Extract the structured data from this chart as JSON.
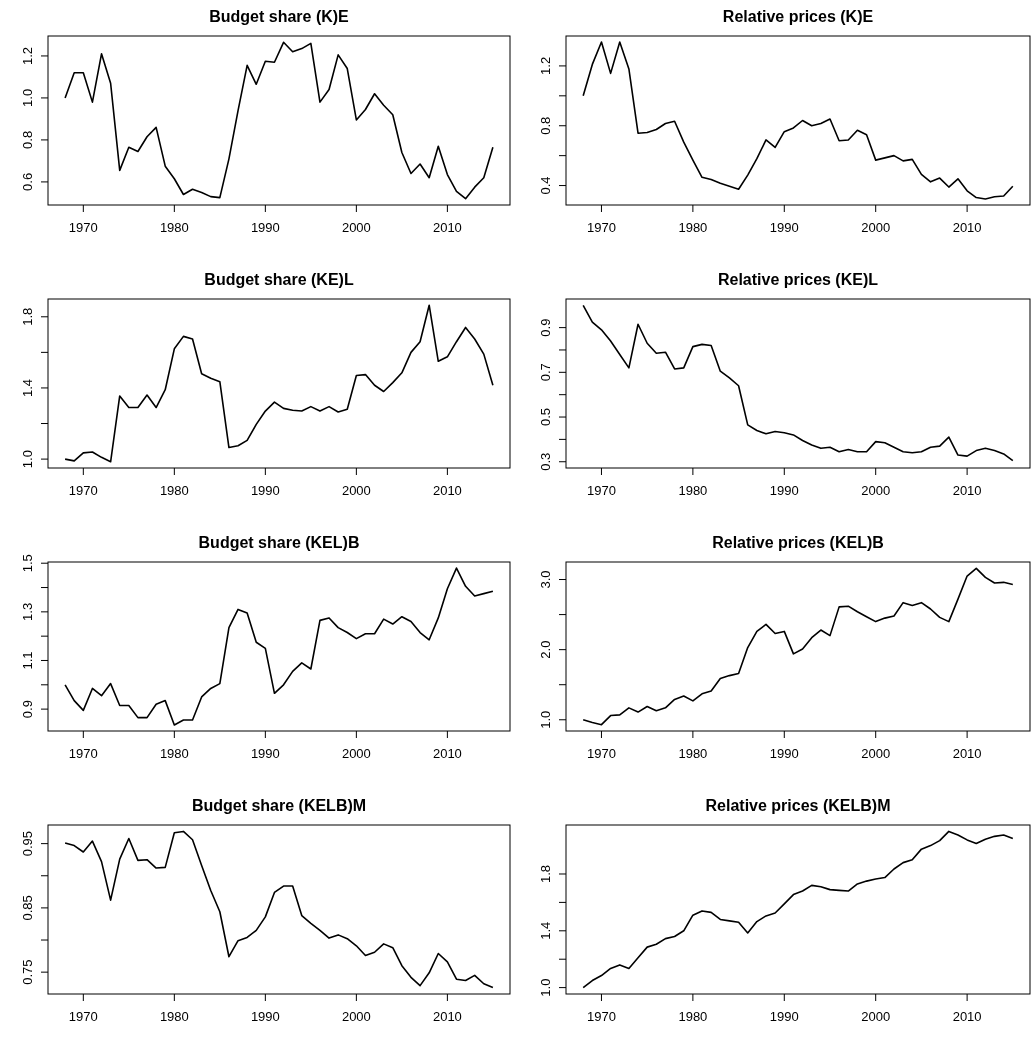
{
  "chart_data": [
    {
      "type": "line",
      "title": "Budget share (K)E",
      "color": "#000000",
      "x": [
        1968,
        1969,
        1970,
        1971,
        1972,
        1973,
        1974,
        1975,
        1976,
        1977,
        1978,
        1979,
        1980,
        1981,
        1982,
        1983,
        1984,
        1985,
        1986,
        1987,
        1988,
        1989,
        1990,
        1991,
        1992,
        1993,
        1994,
        1995,
        1996,
        1997,
        1998,
        1999,
        2000,
        2001,
        2002,
        2003,
        2004,
        2005,
        2006,
        2007,
        2008,
        2009,
        2010,
        2011,
        2012,
        2013,
        2014,
        2015
      ],
      "values": [
        1.0,
        1.12,
        1.12,
        0.98,
        1.21,
        1.07,
        0.655,
        0.765,
        0.745,
        0.815,
        0.86,
        0.675,
        0.615,
        0.54,
        0.565,
        0.55,
        0.53,
        0.525,
        0.71,
        0.94,
        1.155,
        1.065,
        1.175,
        1.17,
        1.265,
        1.22,
        1.235,
        1.26,
        0.98,
        1.04,
        1.205,
        1.14,
        0.895,
        0.945,
        1.02,
        0.965,
        0.92,
        0.74,
        0.64,
        0.685,
        0.62,
        0.77,
        0.635,
        0.555,
        0.52,
        0.575,
        0.62,
        0.765
      ],
      "xlim": [
        1966.12,
        2016.88
      ],
      "xticks": [
        1970,
        1980,
        1990,
        2000,
        2010
      ],
      "ylim": [
        0.49,
        1.295
      ],
      "yticks": [
        0.6,
        0.8,
        {
          "value": 1,
          "label": "1.0"
        },
        1.2
      ]
    },
    {
      "type": "line",
      "title": "Relative prices (K)E",
      "color": "#000000",
      "x": [
        1968,
        1969,
        1970,
        1971,
        1972,
        1973,
        1974,
        1975,
        1976,
        1977,
        1978,
        1979,
        1980,
        1981,
        1982,
        1983,
        1984,
        1985,
        1986,
        1987,
        1988,
        1989,
        1990,
        1991,
        1992,
        1993,
        1994,
        1995,
        1996,
        1997,
        1998,
        1999,
        2000,
        2001,
        2002,
        2003,
        2004,
        2005,
        2006,
        2007,
        2008,
        2009,
        2010,
        2011,
        2012,
        2013,
        2014,
        2015
      ],
      "values": [
        1.0,
        1.21,
        1.36,
        1.15,
        1.36,
        1.18,
        0.75,
        0.755,
        0.775,
        0.815,
        0.83,
        0.69,
        0.57,
        0.455,
        0.44,
        0.415,
        0.395,
        0.375,
        0.47,
        0.58,
        0.705,
        0.655,
        0.76,
        0.785,
        0.835,
        0.8,
        0.815,
        0.845,
        0.7,
        0.705,
        0.77,
        0.74,
        0.57,
        0.585,
        0.6,
        0.565,
        0.575,
        0.475,
        0.425,
        0.45,
        0.39,
        0.445,
        0.365,
        0.32,
        0.31,
        0.325,
        0.33,
        0.395
      ],
      "xlim": [
        1966.12,
        2016.88
      ],
      "xticks": [
        1970,
        1980,
        1990,
        2000,
        2010
      ],
      "ylim": [
        0.27,
        1.4
      ],
      "yticks": [
        0.4,
        {
          "value": 0.6,
          "label": null
        },
        0.8,
        {
          "value": 1,
          "label": null
        },
        1.2
      ]
    },
    {
      "type": "line",
      "title": "Budget share (KE)L",
      "color": "#000000",
      "x": [
        1968,
        1969,
        1970,
        1971,
        1972,
        1973,
        1974,
        1975,
        1976,
        1977,
        1978,
        1979,
        1980,
        1981,
        1982,
        1983,
        1984,
        1985,
        1986,
        1987,
        1988,
        1989,
        1990,
        1991,
        1992,
        1993,
        1994,
        1995,
        1996,
        1997,
        1998,
        1999,
        2000,
        2001,
        2002,
        2003,
        2004,
        2005,
        2006,
        2007,
        2008,
        2009,
        2010,
        2011,
        2012,
        2013,
        2014,
        2015
      ],
      "values": [
        1.0,
        0.99,
        1.035,
        1.04,
        1.01,
        0.985,
        1.355,
        1.29,
        1.29,
        1.36,
        1.29,
        1.39,
        1.62,
        1.69,
        1.675,
        1.48,
        1.455,
        1.435,
        1.065,
        1.075,
        1.105,
        1.195,
        1.27,
        1.32,
        1.285,
        1.275,
        1.27,
        1.295,
        1.27,
        1.295,
        1.265,
        1.28,
        1.47,
        1.475,
        1.415,
        1.38,
        1.43,
        1.485,
        1.6,
        1.66,
        1.865,
        1.55,
        1.575,
        1.66,
        1.74,
        1.675,
        1.59,
        1.415
      ],
      "xlim": [
        1966.12,
        2016.88
      ],
      "xticks": [
        1970,
        1980,
        1990,
        2000,
        2010
      ],
      "ylim": [
        0.95,
        1.9
      ],
      "yticks": [
        {
          "value": 1,
          "label": "1.0"
        },
        {
          "value": 1.2,
          "label": null
        },
        1.4,
        {
          "value": 1.6,
          "label": null
        },
        1.8
      ]
    },
    {
      "type": "line",
      "title": "Relative prices (KE)L",
      "color": "#000000",
      "x": [
        1968,
        1969,
        1970,
        1971,
        1972,
        1973,
        1974,
        1975,
        1976,
        1977,
        1978,
        1979,
        1980,
        1981,
        1982,
        1983,
        1984,
        1985,
        1986,
        1987,
        1988,
        1989,
        1990,
        1991,
        1992,
        1993,
        1994,
        1995,
        1996,
        1997,
        1998,
        1999,
        2000,
        2001,
        2002,
        2003,
        2004,
        2005,
        2006,
        2007,
        2008,
        2009,
        2010,
        2011,
        2012,
        2013,
        2014,
        2015
      ],
      "values": [
        1.0,
        0.925,
        0.89,
        0.84,
        0.78,
        0.72,
        0.915,
        0.83,
        0.785,
        0.79,
        0.715,
        0.72,
        0.815,
        0.825,
        0.82,
        0.705,
        0.675,
        0.64,
        0.465,
        0.44,
        0.425,
        0.435,
        0.43,
        0.42,
        0.395,
        0.375,
        0.36,
        0.365,
        0.345,
        0.355,
        0.345,
        0.345,
        0.39,
        0.385,
        0.365,
        0.345,
        0.34,
        0.345,
        0.365,
        0.37,
        0.41,
        0.33,
        0.325,
        0.35,
        0.36,
        0.35,
        0.335,
        0.305
      ],
      "xlim": [
        1966.12,
        2016.88
      ],
      "xticks": [
        1970,
        1980,
        1990,
        2000,
        2010
      ],
      "ylim": [
        0.272,
        1.028
      ],
      "yticks": [
        0.3,
        {
          "value": 0.4,
          "label": null
        },
        0.5,
        {
          "value": 0.6,
          "label": null
        },
        0.7,
        {
          "value": 0.8,
          "label": null
        },
        0.9
      ]
    },
    {
      "type": "line",
      "title": "Budget share (KEL)B",
      "color": "#000000",
      "x": [
        1968,
        1969,
        1970,
        1971,
        1972,
        1973,
        1974,
        1975,
        1976,
        1977,
        1978,
        1979,
        1980,
        1981,
        1982,
        1983,
        1984,
        1985,
        1986,
        1987,
        1988,
        1989,
        1990,
        1991,
        1992,
        1993,
        1994,
        1995,
        1996,
        1997,
        1998,
        1999,
        2000,
        2001,
        2002,
        2003,
        2004,
        2005,
        2006,
        2007,
        2008,
        2009,
        2010,
        2011,
        2012,
        2013,
        2014,
        2015
      ],
      "values": [
        1.0,
        0.935,
        0.895,
        0.985,
        0.955,
        1.005,
        0.915,
        0.915,
        0.865,
        0.865,
        0.92,
        0.935,
        0.835,
        0.855,
        0.855,
        0.95,
        0.985,
        1.005,
        1.235,
        1.31,
        1.295,
        1.175,
        1.15,
        0.965,
        1.0,
        1.055,
        1.09,
        1.065,
        1.265,
        1.275,
        1.235,
        1.215,
        1.19,
        1.21,
        1.21,
        1.27,
        1.25,
        1.28,
        1.26,
        1.215,
        1.185,
        1.275,
        1.395,
        1.48,
        1.405,
        1.365,
        1.375,
        1.385
      ],
      "xlim": [
        1966.12,
        2016.88
      ],
      "xticks": [
        1970,
        1980,
        1990,
        2000,
        2010
      ],
      "ylim": [
        0.81,
        1.505
      ],
      "yticks": [
        0.9,
        {
          "value": 1,
          "label": null
        },
        1.1,
        {
          "value": 1.2,
          "label": null
        },
        1.3,
        {
          "value": 1.4,
          "label": null
        },
        1.5
      ]
    },
    {
      "type": "line",
      "title": "Relative prices (KEL)B",
      "color": "#000000",
      "x": [
        1968,
        1969,
        1970,
        1971,
        1972,
        1973,
        1974,
        1975,
        1976,
        1977,
        1978,
        1979,
        1980,
        1981,
        1982,
        1983,
        1984,
        1985,
        1986,
        1987,
        1988,
        1989,
        1990,
        1991,
        1992,
        1993,
        1994,
        1995,
        1996,
        1997,
        1998,
        1999,
        2000,
        2001,
        2002,
        2003,
        2004,
        2005,
        2006,
        2007,
        2008,
        2009,
        2010,
        2011,
        2012,
        2013,
        2014,
        2015
      ],
      "values": [
        1.0,
        0.96,
        0.93,
        1.06,
        1.07,
        1.17,
        1.11,
        1.19,
        1.13,
        1.17,
        1.29,
        1.34,
        1.27,
        1.37,
        1.41,
        1.59,
        1.63,
        1.66,
        2.03,
        2.26,
        2.36,
        2.23,
        2.26,
        1.94,
        2.01,
        2.17,
        2.28,
        2.2,
        2.61,
        2.62,
        2.54,
        2.47,
        2.4,
        2.45,
        2.48,
        2.67,
        2.63,
        2.67,
        2.58,
        2.46,
        2.4,
        2.72,
        3.05,
        3.16,
        3.03,
        2.95,
        2.96,
        2.93
      ],
      "xlim": [
        1966.12,
        2016.88
      ],
      "xticks": [
        1970,
        1980,
        1990,
        2000,
        2010
      ],
      "ylim": [
        0.84,
        3.25
      ],
      "yticks": [
        {
          "value": 1,
          "label": "1.0"
        },
        {
          "value": 1.5,
          "label": null
        },
        {
          "value": 2,
          "label": "2.0"
        },
        {
          "value": 2.5,
          "label": null
        },
        {
          "value": 3,
          "label": "3.0"
        }
      ]
    },
    {
      "type": "line",
      "title": "Budget share (KELB)M",
      "color": "#000000",
      "x": [
        1968,
        1969,
        1970,
        1971,
        1972,
        1973,
        1974,
        1975,
        1976,
        1977,
        1978,
        1979,
        1980,
        1981,
        1982,
        1983,
        1984,
        1985,
        1986,
        1987,
        1988,
        1989,
        1990,
        1991,
        1992,
        1993,
        1994,
        1995,
        1996,
        1997,
        1998,
        1999,
        2000,
        2001,
        2002,
        2003,
        2004,
        2005,
        2006,
        2007,
        2008,
        2009,
        2010,
        2011,
        2012,
        2013,
        2014,
        2015
      ],
      "values": [
        0.951,
        0.947,
        0.937,
        0.954,
        0.922,
        0.862,
        0.926,
        0.958,
        0.924,
        0.925,
        0.912,
        0.913,
        0.967,
        0.969,
        0.956,
        0.916,
        0.877,
        0.844,
        0.774,
        0.799,
        0.804,
        0.815,
        0.836,
        0.874,
        0.884,
        0.884,
        0.838,
        0.826,
        0.815,
        0.803,
        0.808,
        0.802,
        0.791,
        0.776,
        0.781,
        0.794,
        0.788,
        0.76,
        0.742,
        0.729,
        0.749,
        0.779,
        0.766,
        0.739,
        0.737,
        0.745,
        0.732,
        0.726
      ],
      "xlim": [
        1966.12,
        2016.88
      ],
      "xticks": [
        1970,
        1980,
        1990,
        2000,
        2010
      ],
      "ylim": [
        0.716,
        0.979
      ],
      "yticks": [
        0.75,
        {
          "value": 0.8,
          "label": null
        },
        0.85,
        {
          "value": 0.9,
          "label": null
        },
        0.95
      ]
    },
    {
      "type": "line",
      "title": "Relative prices (KELB)M",
      "color": "#000000",
      "x": [
        1968,
        1969,
        1970,
        1971,
        1972,
        1973,
        1974,
        1975,
        1976,
        1977,
        1978,
        1979,
        1980,
        1981,
        1982,
        1983,
        1984,
        1985,
        1986,
        1987,
        1988,
        1989,
        1990,
        1991,
        1992,
        1993,
        1994,
        1995,
        1996,
        1997,
        1998,
        1999,
        2000,
        2001,
        2002,
        2003,
        2004,
        2005,
        2006,
        2007,
        2008,
        2009,
        2010,
        2011,
        2012,
        2013,
        2014,
        2015
      ],
      "values": [
        1.0,
        1.05,
        1.085,
        1.135,
        1.16,
        1.135,
        1.21,
        1.285,
        1.305,
        1.345,
        1.36,
        1.4,
        1.51,
        1.54,
        1.53,
        1.48,
        1.47,
        1.46,
        1.385,
        1.465,
        1.505,
        1.525,
        1.59,
        1.655,
        1.68,
        1.72,
        1.71,
        1.69,
        1.685,
        1.68,
        1.73,
        1.75,
        1.765,
        1.775,
        1.835,
        1.88,
        1.9,
        1.975,
        2.0,
        2.035,
        2.1,
        2.075,
        2.04,
        2.015,
        2.045,
        2.065,
        2.075,
        2.05
      ],
      "xlim": [
        1966.12,
        2016.88
      ],
      "xticks": [
        1970,
        1980,
        1990,
        2000,
        2010
      ],
      "ylim": [
        0.955,
        2.145
      ],
      "yticks": [
        {
          "value": 1,
          "label": "1.0"
        },
        {
          "value": 1.2,
          "label": null
        },
        1.4,
        {
          "value": 1.6,
          "label": null
        },
        1.8
      ]
    }
  ]
}
